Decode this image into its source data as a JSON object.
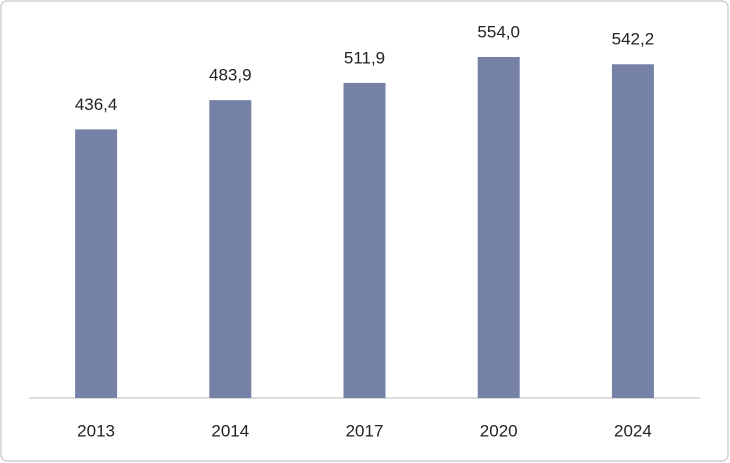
{
  "chart_data": {
    "type": "bar",
    "categories": [
      "2013",
      "2014",
      "2017",
      "2020",
      "2024"
    ],
    "values": [
      436.4,
      483.9,
      511.9,
      554.0,
      542.2
    ],
    "value_labels": [
      "436,4",
      "483,9",
      "511,9",
      "554,0",
      "542,2"
    ],
    "color": "#7681a8"
  }
}
